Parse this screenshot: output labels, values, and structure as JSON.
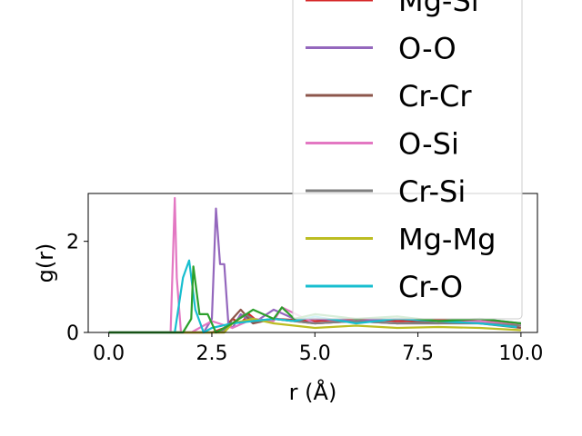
{
  "chart_data": {
    "type": "line",
    "xlabel": "r (Å)",
    "ylabel": "g(r)",
    "xlim": [
      -0.5,
      10.4
    ],
    "ylim": [
      0,
      3.05
    ],
    "xticks": [
      0.0,
      2.5,
      5.0,
      7.5,
      10.0
    ],
    "xtick_labels": [
      "0.0",
      "2.5",
      "5.0",
      "7.5",
      "10.0"
    ],
    "yticks": [
      0,
      2
    ],
    "ytick_labels": [
      "0",
      "2"
    ],
    "grid": false,
    "legend_placement": "upper right, extending above plot",
    "series": [
      {
        "name": "Mg-Si",
        "color": "#d62728",
        "x": [
          0,
          2.5,
          2.8,
          3.0,
          3.2,
          3.4,
          3.6,
          4.0,
          5.0,
          6.0,
          7.0,
          8.0,
          9.0,
          10.0
        ],
        "y": [
          0,
          0,
          0.1,
          0.3,
          0.2,
          0.4,
          0.25,
          0.3,
          0.25,
          0.3,
          0.25,
          0.28,
          0.25,
          0.2
        ]
      },
      {
        "name": "O-O",
        "color": "#9467bd",
        "x": [
          0,
          2.3,
          2.5,
          2.6,
          2.7,
          2.8,
          2.9,
          3.0,
          3.2,
          3.5,
          4.0,
          4.5,
          5.0,
          6.0,
          7.0,
          8.0,
          9.0,
          10.0
        ],
        "y": [
          0,
          0,
          0.3,
          2.72,
          1.5,
          1.5,
          0.2,
          0.1,
          0.4,
          0.2,
          0.5,
          0.3,
          0.3,
          0.25,
          0.3,
          0.25,
          0.3,
          0.2
        ]
      },
      {
        "name": "Cr-Cr",
        "color": "#8c564b",
        "x": [
          0,
          2.8,
          3.0,
          3.2,
          3.5,
          4.0,
          5.0,
          6.0,
          7.0,
          8.0,
          9.0,
          10.0
        ],
        "y": [
          0,
          0,
          0.3,
          0.5,
          0.2,
          0.3,
          0.2,
          0.25,
          0.2,
          0.25,
          0.2,
          0.1
        ]
      },
      {
        "name": "O-Si",
        "color": "#e377c2",
        "x": [
          0,
          1.5,
          1.6,
          1.65,
          1.75,
          2.0,
          2.5,
          3.0,
          3.5,
          4.0,
          4.2,
          5.0,
          6.0,
          7.0,
          8.0,
          9.0,
          10.0
        ],
        "y": [
          0,
          0,
          2.95,
          1.2,
          0,
          0,
          0.25,
          0.1,
          0.3,
          0.25,
          0.55,
          0.2,
          0.25,
          0.2,
          0.2,
          0.25,
          0.15
        ]
      },
      {
        "name": "Cr-Si",
        "color": "#7f7f7f",
        "x": [
          0,
          2.7,
          3.0,
          3.3,
          3.6,
          4.0,
          5.0,
          6.0,
          7.0,
          8.0,
          9.0,
          10.0
        ],
        "y": [
          0,
          0,
          0.2,
          0.4,
          0.25,
          0.3,
          0.2,
          0.25,
          0.2,
          0.2,
          0.2,
          0.15
        ]
      },
      {
        "name": "Mg-Mg",
        "color": "#bcbd22",
        "x": [
          0,
          2.8,
          3.0,
          3.5,
          4.0,
          5.0,
          6.0,
          7.0,
          8.0,
          9.0,
          10.0
        ],
        "y": [
          0,
          0,
          0.2,
          0.3,
          0.2,
          0.1,
          0.15,
          0.1,
          0.12,
          0.1,
          0.05
        ]
      },
      {
        "name": "Cr-O",
        "color": "#17becf",
        "x": [
          0,
          1.6,
          1.8,
          1.95,
          2.1,
          2.3,
          2.5,
          3.0,
          3.5,
          4.0,
          4.5,
          5.0,
          6.0,
          7.0,
          8.0,
          9.0,
          9.9
        ],
        "y": [
          0,
          0,
          1.2,
          1.58,
          0.5,
          0,
          0.1,
          0.2,
          0.25,
          0.3,
          0.25,
          0.35,
          0.2,
          0.3,
          0.25,
          0.2,
          0.12
        ]
      },
      {
        "name": "",
        "color": "#2ca02c",
        "x": [
          0,
          1.8,
          2.0,
          2.05,
          2.2,
          2.4,
          2.6,
          3.0,
          3.5,
          4.0,
          4.2,
          4.5,
          5.0,
          6.0,
          7.0,
          8.0,
          9.0,
          10.0
        ],
        "y": [
          0,
          0,
          0.3,
          1.45,
          0.4,
          0.4,
          0,
          0.2,
          0.5,
          0.3,
          0.55,
          0.3,
          0.4,
          0.3,
          0.35,
          0.25,
          0.3,
          0.2
        ]
      }
    ]
  }
}
